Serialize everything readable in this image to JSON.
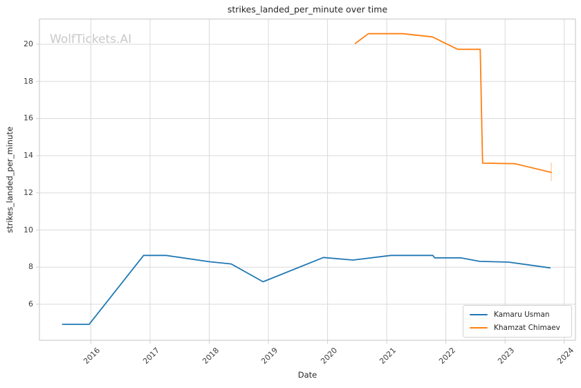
{
  "chart_data": {
    "type": "line",
    "title": "strikes_landed_per_minute over time",
    "xlabel": "Date",
    "ylabel": "strikes_landed_per_minute",
    "watermark": "WolfTickets.AI",
    "grid": true,
    "legend_position": "lower right",
    "xlim": [
      2015.13,
      2024.19
    ],
    "ylim": [
      4.06,
      21.36
    ],
    "xticks": [
      2016,
      2017,
      2018,
      2019,
      2020,
      2021,
      2022,
      2023,
      2024
    ],
    "yticks": [
      6,
      8,
      10,
      12,
      14,
      16,
      18,
      20
    ],
    "style": {
      "background": "#ffffff",
      "grid_color": "#d9d9d9",
      "spine_color": "#cfcfcf",
      "tick_mark_color": "#cfcfcf",
      "title_color": "#262626",
      "tick_label_color": "#3d3d3d",
      "watermark_color": "#c8c8c8"
    },
    "series": [
      {
        "name": "Kamaru Usman",
        "color": "#1f77b4",
        "points": [
          [
            2015.52,
            4.92
          ],
          [
            2015.97,
            4.92
          ],
          [
            2016.89,
            8.63
          ],
          [
            2017.27,
            8.63
          ],
          [
            2018.0,
            8.29
          ],
          [
            2018.37,
            8.17
          ],
          [
            2018.91,
            7.21
          ],
          [
            2019.93,
            8.52
          ],
          [
            2020.43,
            8.38
          ],
          [
            2021.07,
            8.63
          ],
          [
            2021.78,
            8.63
          ],
          [
            2021.81,
            8.5
          ],
          [
            2022.25,
            8.5
          ],
          [
            2022.57,
            8.31
          ],
          [
            2023.06,
            8.27
          ],
          [
            2023.76,
            7.96
          ]
        ]
      },
      {
        "name": "Khamzat Chimaev",
        "color": "#ff7f0e",
        "points": [
          [
            2020.47,
            20.05
          ],
          [
            2020.69,
            20.57
          ],
          [
            2021.27,
            20.57
          ],
          [
            2021.77,
            20.4
          ],
          [
            2022.2,
            19.73
          ],
          [
            2022.58,
            19.73
          ],
          [
            2022.62,
            13.6
          ],
          [
            2023.17,
            13.57
          ],
          [
            2023.78,
            13.1
          ]
        ],
        "error_bar_last": {
          "x": 2023.78,
          "y_low": 12.63,
          "y_high": 13.63
        }
      }
    ]
  }
}
